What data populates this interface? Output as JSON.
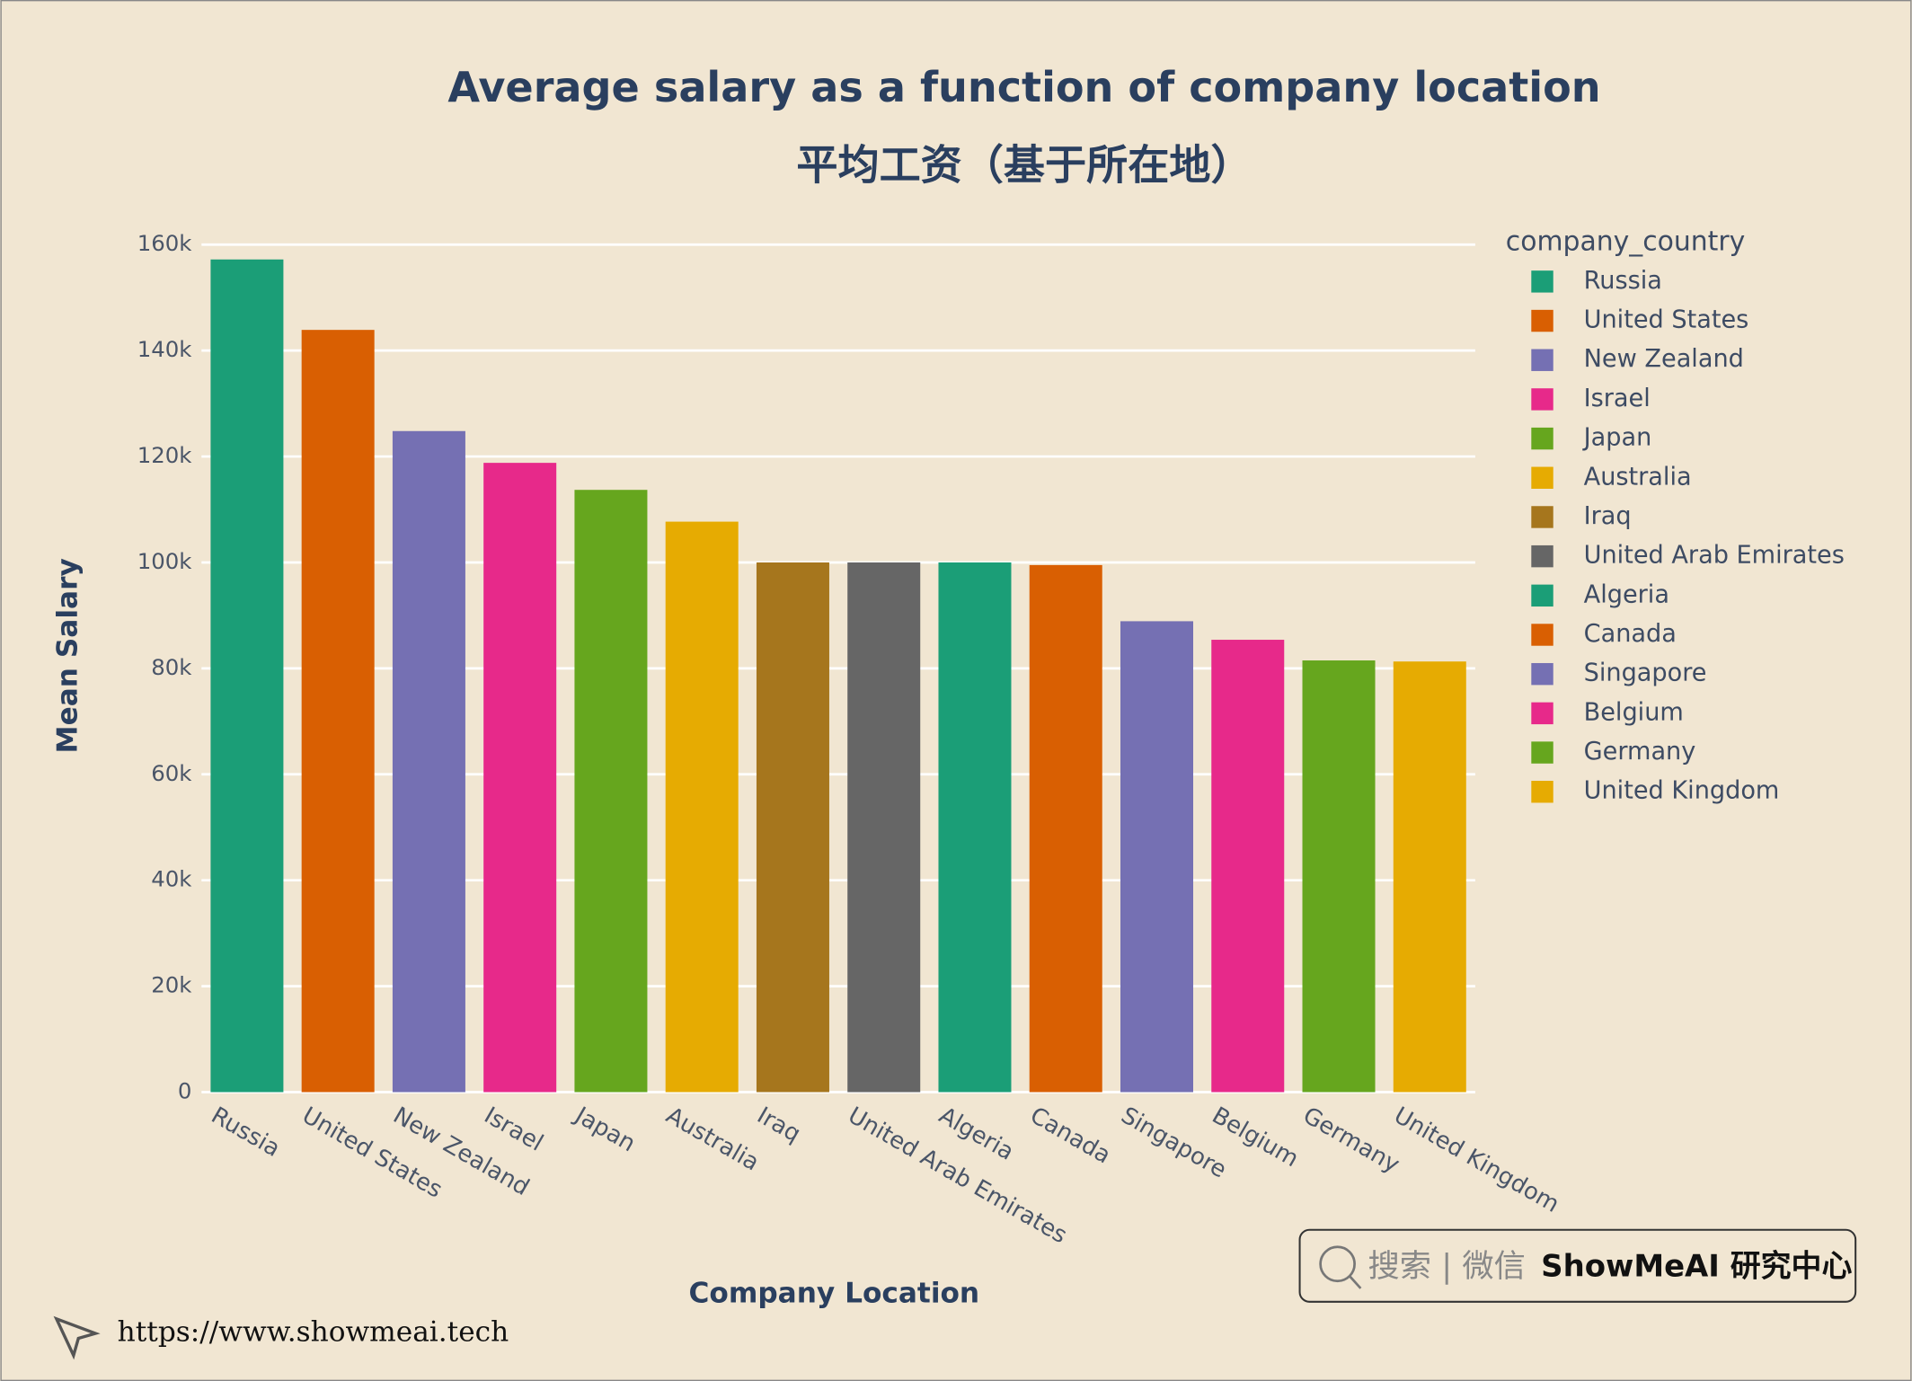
{
  "chart_data": {
    "type": "bar",
    "title": "Average salary as a function of company location",
    "subtitle": "平均工资（基于所在地）",
    "x_label": "Company Location",
    "y_label": "Mean Salary",
    "legend_title": "company_country",
    "legend": "right",
    "grid": true,
    "categories": [
      "Russia",
      "United States",
      "New Zealand",
      "Israel",
      "Japan",
      "Australia",
      "Iraq",
      "United Arab Emirates",
      "Algeria",
      "Canada",
      "Singapore",
      "Belgium",
      "Germany",
      "United Kingdom"
    ],
    "values": [
      157200,
      143900,
      124800,
      118800,
      113700,
      107700,
      100000,
      100000,
      100000,
      99500,
      88900,
      85400,
      81500,
      81300
    ],
    "colors": [
      "#1b9e77",
      "#d95f02",
      "#7570b3",
      "#e7298a",
      "#66a61e",
      "#e6ab02",
      "#a6761d",
      "#666666",
      "#1b9e77",
      "#d95f02",
      "#7570b3",
      "#e7298a",
      "#66a61e",
      "#e6ab02"
    ],
    "ylim": [
      0,
      162000
    ],
    "yticks": [
      0,
      {
        "value": 20000,
        "label": "20k"
      },
      {
        "value": 40000,
        "label": "40k"
      },
      {
        "value": 60000,
        "label": "60k"
      },
      {
        "value": 80000,
        "label": "80k"
      },
      {
        "value": 100000,
        "label": "100k"
      },
      {
        "value": 120000,
        "label": "120k"
      },
      {
        "value": 140000,
        "label": "140k"
      },
      {
        "value": 160000,
        "label": "160k"
      }
    ]
  },
  "watermark": {
    "search": "搜索 | 微信",
    "brand": "ShowMeAI 研究中心"
  },
  "url": "https://www.showmeai.tech"
}
